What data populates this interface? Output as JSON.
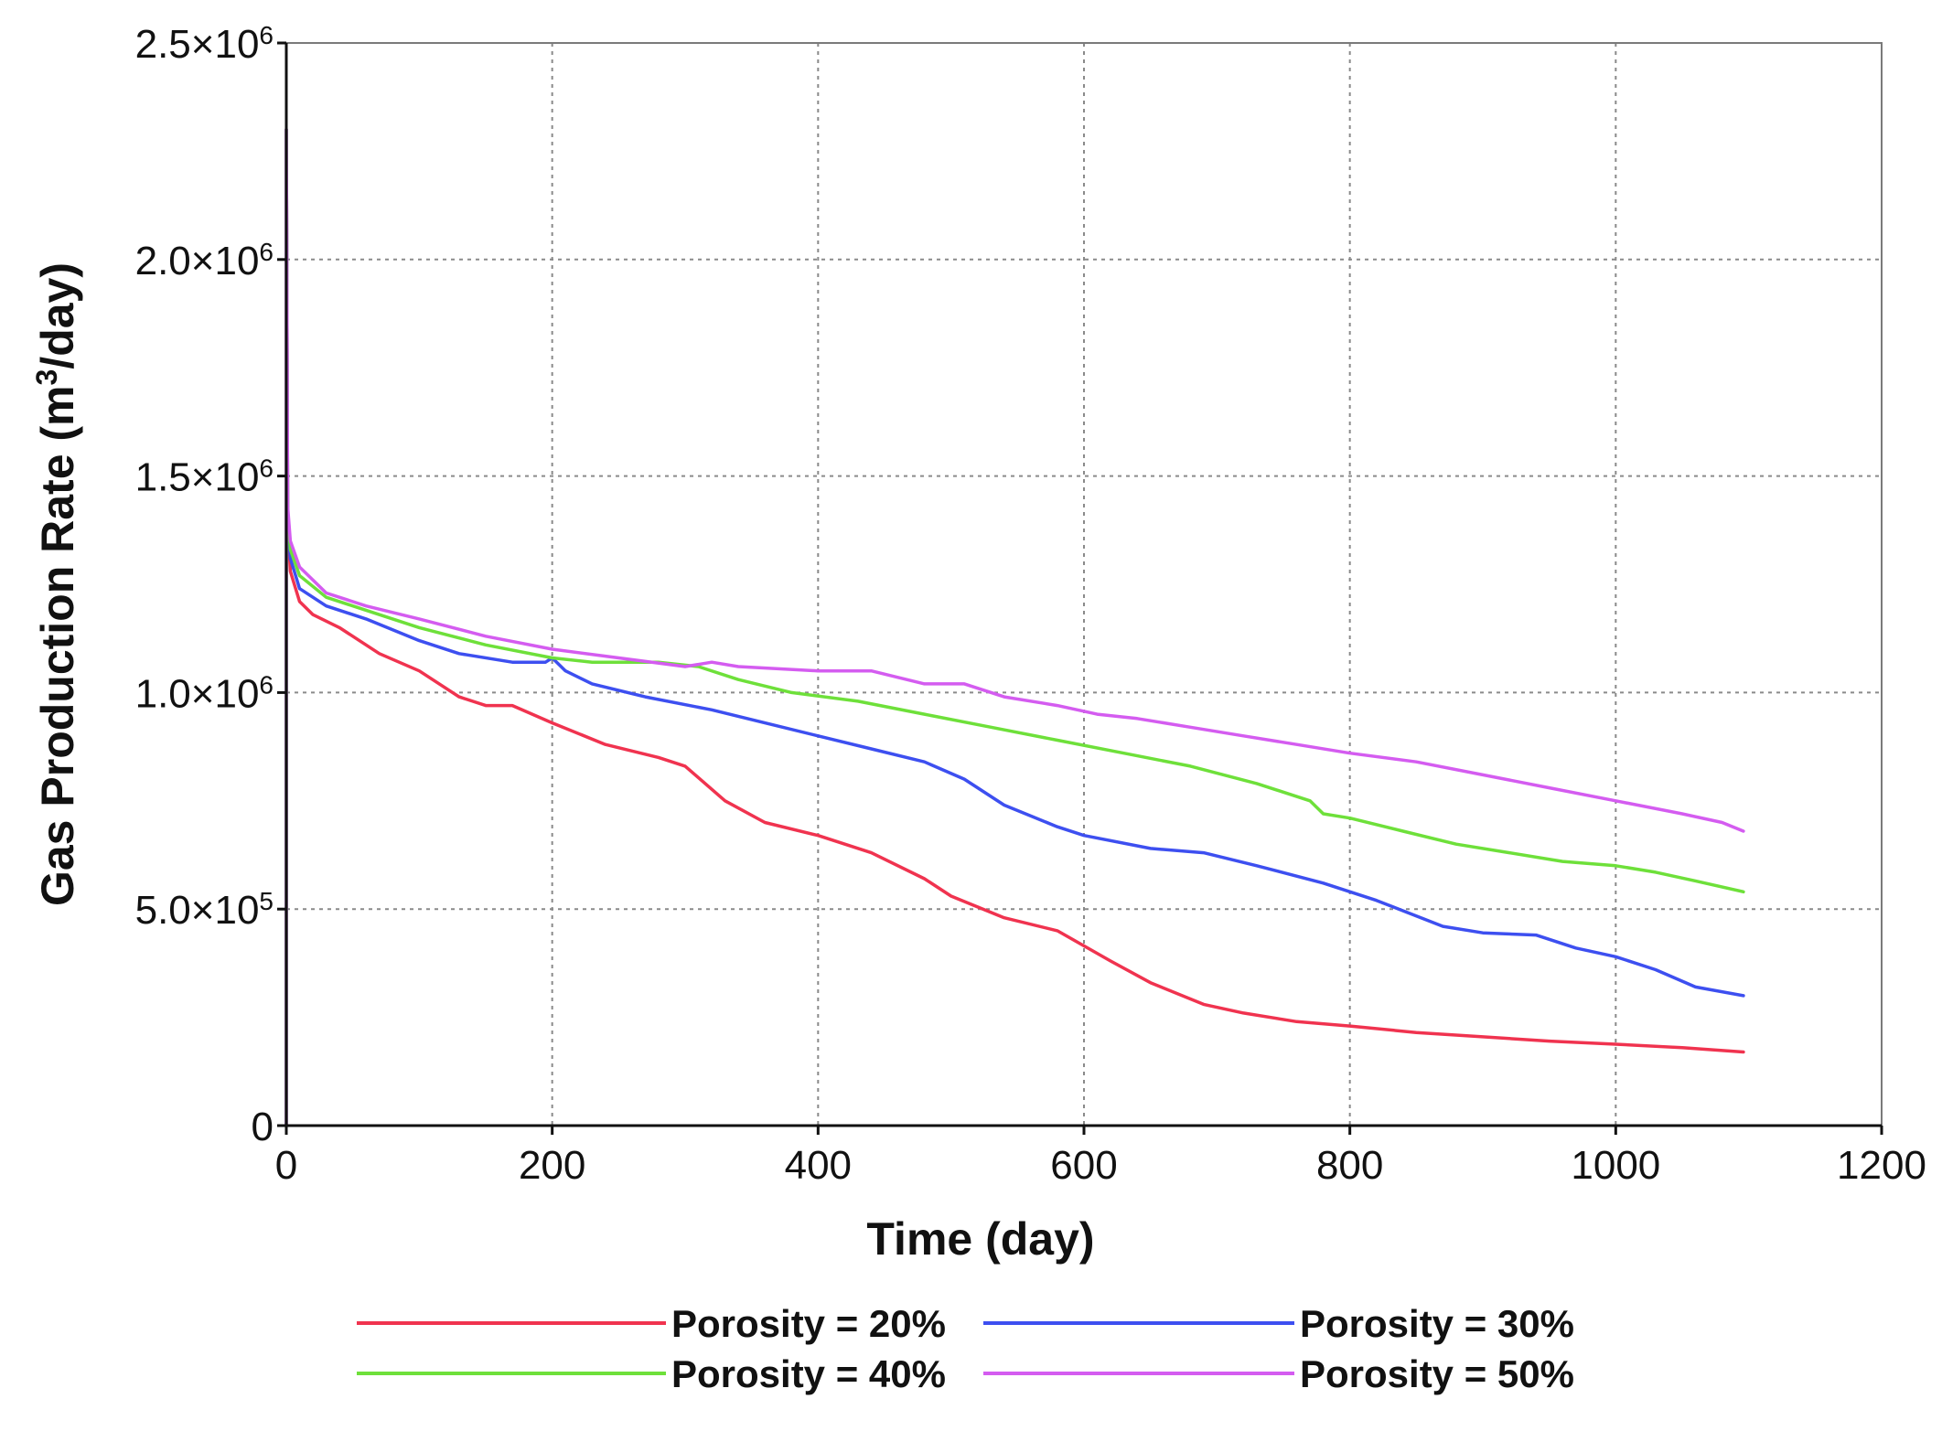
{
  "chart_data": {
    "type": "line",
    "title": "",
    "xlabel": "Time (day)",
    "ylabel": "Gas Production Rate (m",
    "ylabel_sup": "3",
    "ylabel_tail": "/day)",
    "xlim": [
      0,
      1200
    ],
    "ylim": [
      0,
      2500000
    ],
    "grid": true,
    "legend_position": "bottom",
    "x_ticks": [
      {
        "value": 0,
        "label": "0"
      },
      {
        "value": 200,
        "label": "200"
      },
      {
        "value": 400,
        "label": "400"
      },
      {
        "value": 600,
        "label": "600"
      },
      {
        "value": 800,
        "label": "800"
      },
      {
        "value": 1000,
        "label": "1000"
      },
      {
        "value": 1200,
        "label": "1200"
      }
    ],
    "y_ticks": [
      {
        "value": 0,
        "label": "0",
        "exp": ""
      },
      {
        "value": 500000,
        "label": "5.0×10",
        "exp": "5"
      },
      {
        "value": 1000000,
        "label": "1.0×10",
        "exp": "6"
      },
      {
        "value": 1500000,
        "label": "1.5×10",
        "exp": "6"
      },
      {
        "value": 2000000,
        "label": "2.0×10",
        "exp": "6"
      },
      {
        "value": 2500000,
        "label": "2.5×10",
        "exp": "6"
      }
    ],
    "series": [
      {
        "name": "Porosity = 20%",
        "color": "#f0334f",
        "points": [
          [
            0,
            0
          ],
          [
            0,
            2300000
          ],
          [
            1,
            1400000
          ],
          [
            3,
            1280000
          ],
          [
            10,
            1210000
          ],
          [
            20,
            1180000
          ],
          [
            40,
            1150000
          ],
          [
            70,
            1090000
          ],
          [
            100,
            1050000
          ],
          [
            130,
            990000
          ],
          [
            150,
            970000
          ],
          [
            170,
            970000
          ],
          [
            200,
            930000
          ],
          [
            240,
            880000
          ],
          [
            280,
            850000
          ],
          [
            300,
            830000
          ],
          [
            330,
            750000
          ],
          [
            360,
            700000
          ],
          [
            400,
            670000
          ],
          [
            440,
            630000
          ],
          [
            480,
            570000
          ],
          [
            500,
            530000
          ],
          [
            540,
            480000
          ],
          [
            580,
            450000
          ],
          [
            620,
            380000
          ],
          [
            650,
            330000
          ],
          [
            690,
            280000
          ],
          [
            720,
            260000
          ],
          [
            760,
            240000
          ],
          [
            800,
            230000
          ],
          [
            850,
            215000
          ],
          [
            900,
            205000
          ],
          [
            950,
            195000
          ],
          [
            1000,
            188000
          ],
          [
            1050,
            180000
          ],
          [
            1096,
            170000
          ]
        ]
      },
      {
        "name": "Porosity = 30%",
        "color": "#3d4ff0",
        "points": [
          [
            0,
            0
          ],
          [
            0,
            2300000
          ],
          [
            1,
            1400000
          ],
          [
            3,
            1310000
          ],
          [
            10,
            1240000
          ],
          [
            30,
            1200000
          ],
          [
            60,
            1170000
          ],
          [
            100,
            1120000
          ],
          [
            130,
            1090000
          ],
          [
            170,
            1070000
          ],
          [
            195,
            1070000
          ],
          [
            200,
            1080000
          ],
          [
            210,
            1050000
          ],
          [
            230,
            1020000
          ],
          [
            270,
            990000
          ],
          [
            320,
            960000
          ],
          [
            360,
            930000
          ],
          [
            400,
            900000
          ],
          [
            440,
            870000
          ],
          [
            480,
            840000
          ],
          [
            510,
            800000
          ],
          [
            540,
            740000
          ],
          [
            580,
            690000
          ],
          [
            600,
            670000
          ],
          [
            650,
            640000
          ],
          [
            690,
            630000
          ],
          [
            730,
            600000
          ],
          [
            780,
            560000
          ],
          [
            820,
            520000
          ],
          [
            870,
            460000
          ],
          [
            900,
            445000
          ],
          [
            940,
            440000
          ],
          [
            970,
            410000
          ],
          [
            1000,
            390000
          ],
          [
            1030,
            360000
          ],
          [
            1060,
            320000
          ],
          [
            1096,
            300000
          ]
        ]
      },
      {
        "name": "Porosity = 40%",
        "color": "#6ee03a",
        "points": [
          [
            0,
            0
          ],
          [
            0,
            2300000
          ],
          [
            1,
            1420000
          ],
          [
            3,
            1330000
          ],
          [
            10,
            1270000
          ],
          [
            30,
            1220000
          ],
          [
            60,
            1190000
          ],
          [
            100,
            1150000
          ],
          [
            150,
            1110000
          ],
          [
            200,
            1080000
          ],
          [
            230,
            1070000
          ],
          [
            280,
            1070000
          ],
          [
            310,
            1060000
          ],
          [
            340,
            1030000
          ],
          [
            380,
            1000000
          ],
          [
            430,
            980000
          ],
          [
            480,
            950000
          ],
          [
            530,
            920000
          ],
          [
            580,
            890000
          ],
          [
            630,
            860000
          ],
          [
            680,
            830000
          ],
          [
            730,
            790000
          ],
          [
            770,
            750000
          ],
          [
            780,
            720000
          ],
          [
            800,
            710000
          ],
          [
            840,
            680000
          ],
          [
            880,
            650000
          ],
          [
            920,
            630000
          ],
          [
            960,
            610000
          ],
          [
            1000,
            600000
          ],
          [
            1030,
            585000
          ],
          [
            1060,
            565000
          ],
          [
            1096,
            540000
          ]
        ]
      },
      {
        "name": "Porosity = 50%",
        "color": "#d45cf0",
        "points": [
          [
            0,
            0
          ],
          [
            0,
            2300000
          ],
          [
            1,
            1430000
          ],
          [
            3,
            1350000
          ],
          [
            10,
            1290000
          ],
          [
            30,
            1230000
          ],
          [
            60,
            1200000
          ],
          [
            100,
            1170000
          ],
          [
            150,
            1130000
          ],
          [
            200,
            1100000
          ],
          [
            250,
            1080000
          ],
          [
            300,
            1060000
          ],
          [
            320,
            1070000
          ],
          [
            340,
            1060000
          ],
          [
            400,
            1050000
          ],
          [
            440,
            1050000
          ],
          [
            480,
            1020000
          ],
          [
            510,
            1020000
          ],
          [
            540,
            990000
          ],
          [
            580,
            970000
          ],
          [
            610,
            950000
          ],
          [
            640,
            940000
          ],
          [
            680,
            920000
          ],
          [
            720,
            900000
          ],
          [
            760,
            880000
          ],
          [
            800,
            860000
          ],
          [
            850,
            840000
          ],
          [
            900,
            810000
          ],
          [
            950,
            780000
          ],
          [
            1000,
            750000
          ],
          [
            1050,
            720000
          ],
          [
            1080,
            700000
          ],
          [
            1096,
            680000
          ]
        ]
      }
    ]
  }
}
